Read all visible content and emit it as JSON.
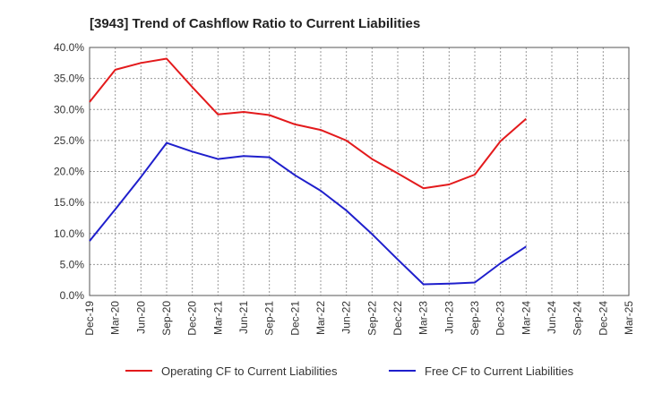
{
  "chart_data": {
    "type": "line",
    "title": "[3943]  Trend of Cashflow Ratio to Current Liabilities",
    "xlabel": "",
    "ylabel": "",
    "categories": [
      "Dec-19",
      "Mar-20",
      "Jun-20",
      "Sep-20",
      "Dec-20",
      "Mar-21",
      "Jun-21",
      "Sep-21",
      "Dec-21",
      "Mar-22",
      "Jun-22",
      "Sep-22",
      "Dec-22",
      "Mar-23",
      "Jun-23",
      "Sep-23",
      "Dec-23",
      "Mar-24",
      "Jun-24",
      "Sep-24",
      "Dec-24",
      "Mar-25"
    ],
    "ylim": [
      0,
      40
    ],
    "yticks": [
      "0.0%",
      "5.0%",
      "10.0%",
      "15.0%",
      "20.0%",
      "25.0%",
      "30.0%",
      "35.0%",
      "40.0%"
    ],
    "grid": true,
    "legend_position": "bottom",
    "series": [
      {
        "name": "Operating CF to Current Liabilities",
        "color": "#e31a1c",
        "values": [
          31.2,
          36.4,
          37.5,
          38.2,
          33.6,
          29.2,
          29.6,
          29.1,
          27.6,
          26.7,
          25.0,
          22.0,
          19.7,
          17.3,
          17.9,
          19.5,
          24.9,
          28.5,
          null,
          null,
          null,
          null
        ]
      },
      {
        "name": "Free CF to Current Liabilities",
        "color": "#1f1fcc",
        "values": [
          8.8,
          13.9,
          19.1,
          24.6,
          23.2,
          22.0,
          22.5,
          22.3,
          19.4,
          16.9,
          13.7,
          9.9,
          5.8,
          1.8,
          1.9,
          2.1,
          5.2,
          7.9,
          null,
          null,
          null,
          null
        ]
      }
    ]
  }
}
